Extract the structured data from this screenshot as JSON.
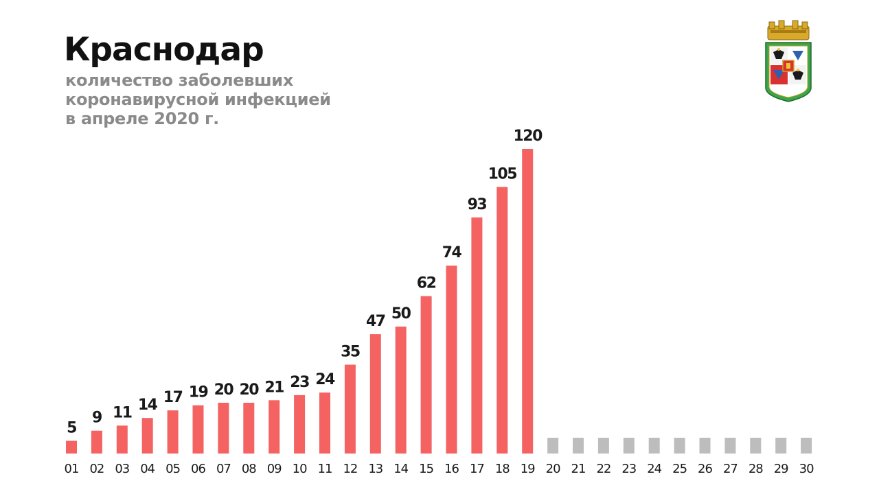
{
  "title": "Краснодар",
  "subtitle": [
    "количество заболевших",
    "коронавирусной инфекцией",
    "в апреле 2020 г."
  ],
  "colors": {
    "bar_active": "#f46262",
    "bar_future": "#bdbdbd",
    "title": "#111111",
    "subtitle": "#8a8a8a"
  },
  "emblem": {
    "icon": "krasnodar-coat-of-arms-icon"
  },
  "chart_data": {
    "type": "bar",
    "categories": [
      "01",
      "02",
      "03",
      "04",
      "05",
      "06",
      "07",
      "08",
      "09",
      "10",
      "11",
      "12",
      "13",
      "14",
      "15",
      "16",
      "17",
      "18",
      "19",
      "20",
      "21",
      "22",
      "23",
      "24",
      "25",
      "26",
      "27",
      "28",
      "29",
      "30"
    ],
    "values": [
      5,
      9,
      11,
      14,
      17,
      19,
      20,
      20,
      21,
      23,
      24,
      35,
      47,
      50,
      62,
      74,
      93,
      105,
      120,
      null,
      null,
      null,
      null,
      null,
      null,
      null,
      null,
      null,
      null,
      null
    ],
    "data_labels": [
      "5",
      "9",
      "11",
      "14",
      "17",
      "19",
      "20",
      "20",
      "21",
      "23",
      "24",
      "35",
      "47",
      "50",
      "62",
      "74",
      "93",
      "105",
      "120",
      "",
      "",
      "",
      "",
      "",
      "",
      "",
      "",
      "",
      "",
      ""
    ],
    "ylim": [
      0,
      120
    ],
    "grid": false,
    "legend": "none"
  }
}
